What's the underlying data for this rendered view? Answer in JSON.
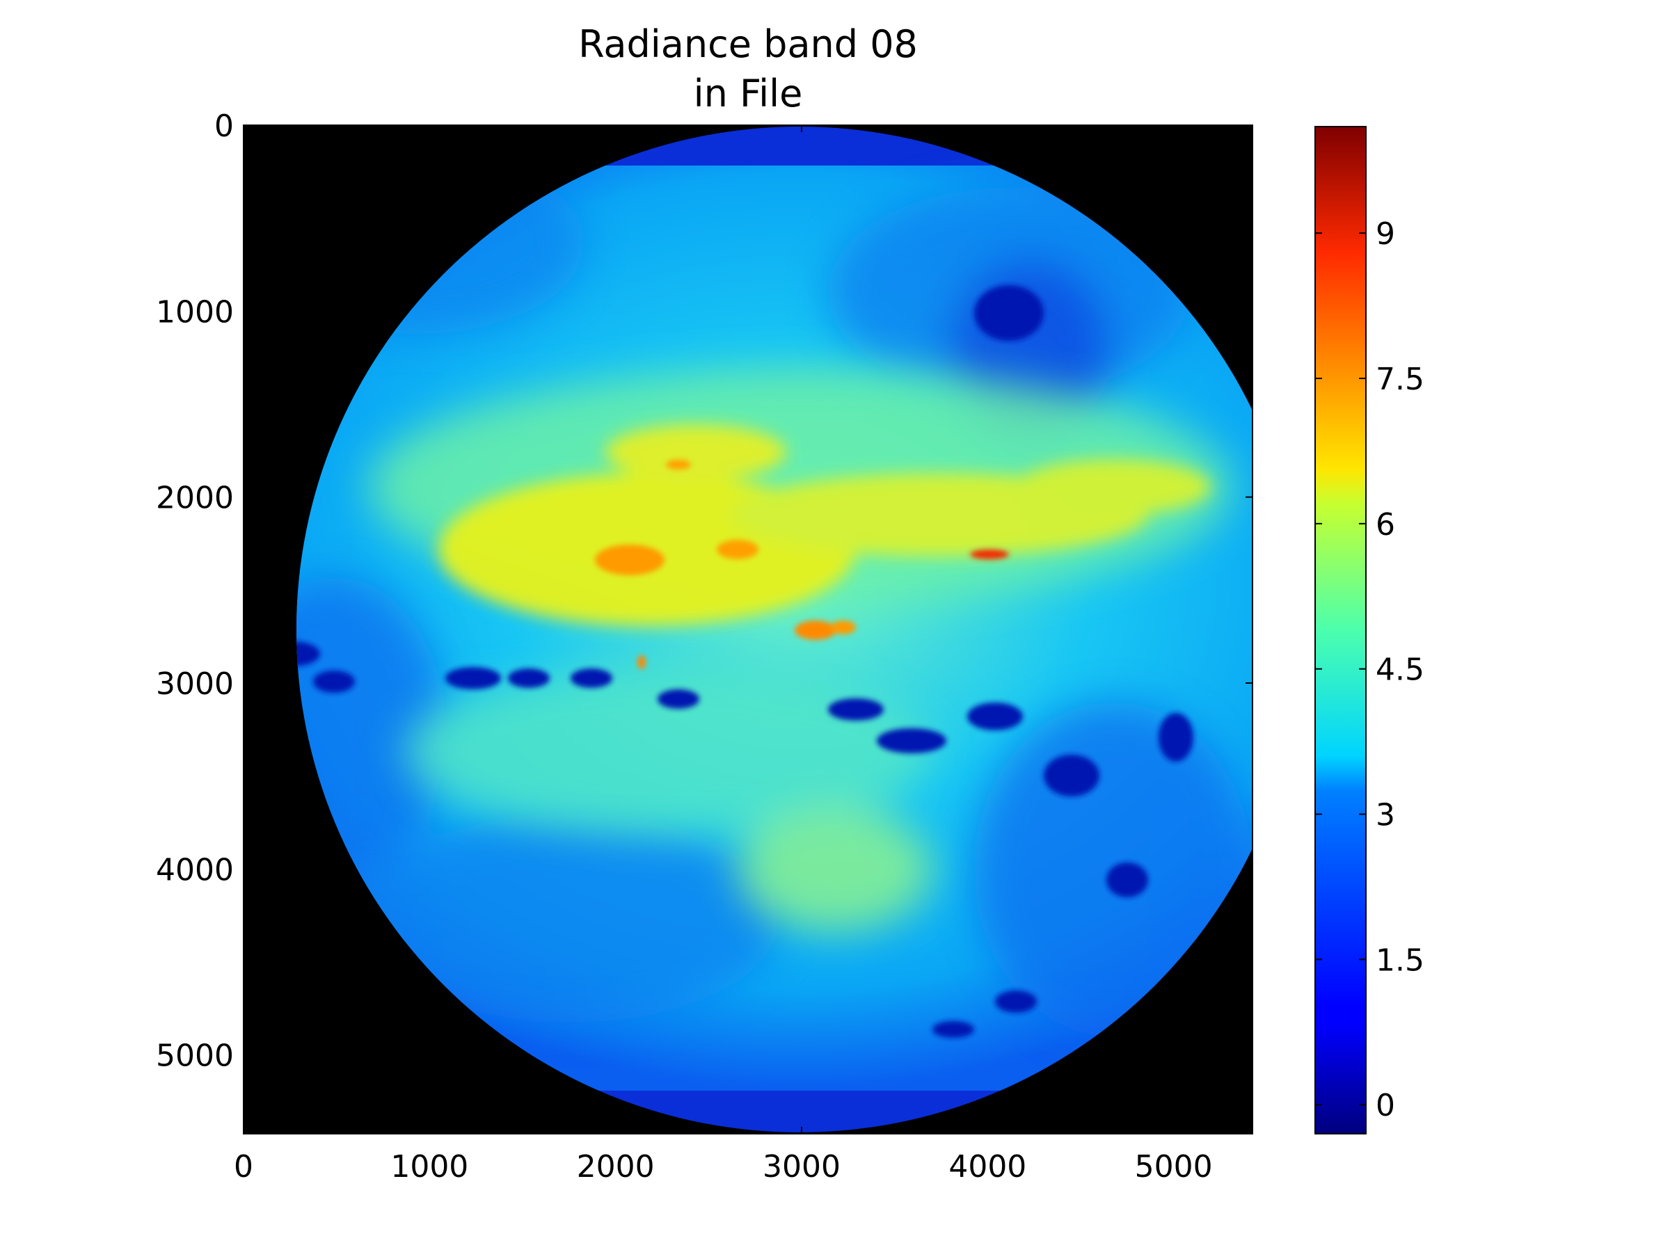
{
  "chart_data": {
    "type": "heatmap",
    "title": "Radiance band 08",
    "subtitle": "in File",
    "image_style": "full-disk earth image",
    "colormap": "jet",
    "background_color": "#000000",
    "x_axis": {
      "range": [
        0,
        5424
      ],
      "ticks": [
        "0",
        "1000",
        "2000",
        "3000",
        "4000",
        "5000"
      ],
      "tick_values": [
        0,
        1000,
        2000,
        3000,
        4000,
        5000
      ]
    },
    "y_axis": {
      "range": [
        0,
        5424
      ],
      "inverted": true,
      "ticks": [
        "0",
        "1000",
        "2000",
        "3000",
        "4000",
        "5000"
      ],
      "tick_values": [
        0,
        1000,
        2000,
        3000,
        4000,
        5000
      ]
    },
    "colorbar": {
      "range": [
        -0.3,
        10.1
      ],
      "ticks": [
        "0",
        "1.5",
        "3",
        "4.5",
        "6",
        "7.5",
        "9"
      ],
      "tick_values": [
        0,
        1.5,
        3,
        4.5,
        6,
        7.5,
        9
      ],
      "placement": "right"
    },
    "regions": [
      {
        "name": "warm-band",
        "value": 6.2
      },
      {
        "name": "hot-spots",
        "value": 8.5
      },
      {
        "name": "cold-clusters",
        "value": 0.3
      },
      {
        "name": "background-disk",
        "value": 2.8
      }
    ]
  }
}
